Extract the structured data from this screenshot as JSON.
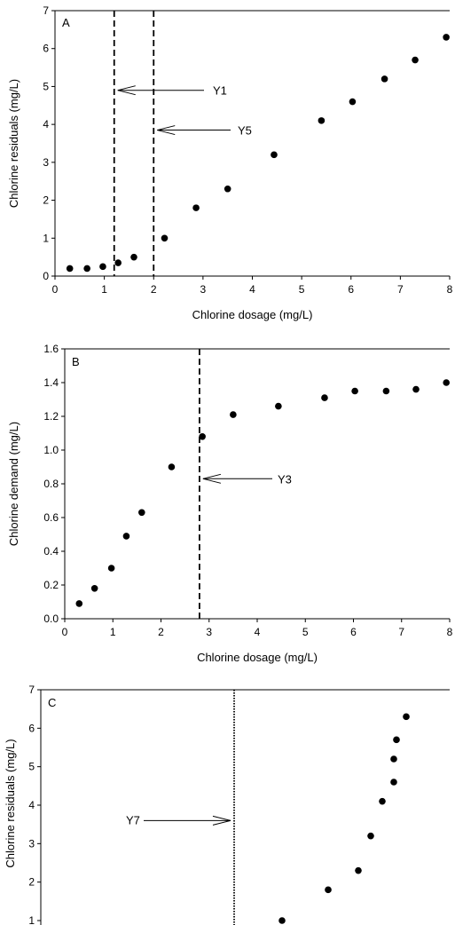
{
  "chart_data": [
    {
      "type": "scatter",
      "panel_label": "A",
      "xlabel": "Chlorine dosage (mg/L)",
      "ylabel": "Chlorine residuals (mg/L)",
      "xlim": [
        0,
        8
      ],
      "ylim": [
        0,
        7
      ],
      "xticks": [
        "0",
        "1",
        "2",
        "3",
        "4",
        "5",
        "6",
        "7",
        "8"
      ],
      "yticks": [
        "0",
        "1",
        "2",
        "3",
        "4",
        "5",
        "6",
        "7"
      ],
      "x": [
        0.3,
        0.65,
        0.97,
        1.28,
        1.6,
        2.22,
        2.86,
        3.5,
        4.44,
        5.4,
        6.03,
        6.68,
        7.3,
        7.93
      ],
      "y": [
        0.2,
        0.2,
        0.25,
        0.35,
        0.5,
        1.0,
        1.8,
        2.3,
        3.2,
        4.1,
        4.6,
        5.2,
        5.7,
        6.3
      ],
      "vlines": [
        {
          "x": 1.2,
          "style": "dashed"
        },
        {
          "x": 2.0,
          "style": "dashed"
        }
      ],
      "annotations": [
        {
          "text": "Y1",
          "arrow_to_x": 1.2,
          "y": 4.9
        },
        {
          "text": "Y5",
          "arrow_to_x": 2.0,
          "y": 3.85
        }
      ],
      "grid": false
    },
    {
      "type": "scatter",
      "panel_label": "B",
      "xlabel": "Chlorine dosage (mg/L)",
      "ylabel": "Chlorine demand (mg/L)",
      "xlim": [
        0,
        8
      ],
      "ylim": [
        0,
        1.6
      ],
      "xticks": [
        "0",
        "1",
        "2",
        "3",
        "4",
        "5",
        "6",
        "7",
        "8"
      ],
      "yticks": [
        "0.0",
        "0.2",
        "0.4",
        "0.6",
        "0.8",
        "1.0",
        "1.2",
        "1.4",
        "1.6"
      ],
      "x": [
        0.3,
        0.62,
        0.97,
        1.28,
        1.6,
        2.22,
        2.86,
        3.5,
        4.44,
        5.4,
        6.03,
        6.68,
        7.3,
        7.93
      ],
      "y": [
        0.09,
        0.18,
        0.3,
        0.49,
        0.63,
        0.9,
        1.08,
        1.21,
        1.26,
        1.31,
        1.35,
        1.35,
        1.36,
        1.4
      ],
      "vlines": [
        {
          "x": 2.8,
          "style": "dashed"
        }
      ],
      "annotations": [
        {
          "text": "Y3",
          "arrow_to_x": 2.8,
          "y": 0.83
        }
      ],
      "grid": false
    },
    {
      "type": "scatter",
      "panel_label": "C",
      "xlabel": "",
      "ylabel": "Chlorine residuals (mg/L)",
      "ylim": [
        1,
        7
      ],
      "yticks": [
        "1",
        "2",
        "3",
        "4",
        "5",
        "6",
        "7"
      ],
      "x": [
        0.55,
        1.03,
        1.62,
        2.14,
        2.6,
        2.98,
        3.22,
        3.26,
        3.3,
        3.46
      ],
      "y": [
        1.0,
        1.8,
        2.3,
        3.2,
        4.1,
        4.6,
        5.2,
        5.7,
        6.3,
        6.3
      ],
      "vlines": [
        {
          "x": 0,
          "style": "dotted"
        }
      ],
      "annotations": [
        {
          "text": "Y7",
          "arrow_to_x": 0,
          "y": 3.6
        }
      ],
      "grid": false
    }
  ]
}
